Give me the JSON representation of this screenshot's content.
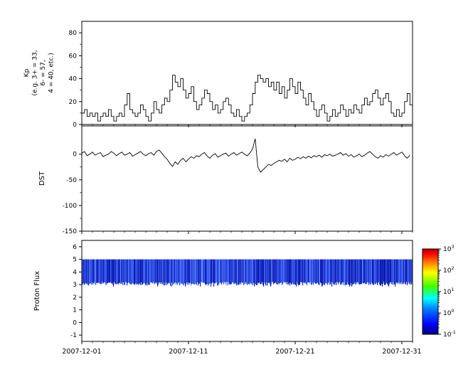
{
  "figure": {
    "background_color": "#ffffff",
    "line_color": "#000000",
    "x_axis": {
      "type": "time",
      "range_days": [
        0,
        31
      ],
      "major_tick_days": [
        0,
        10,
        20,
        30
      ],
      "major_tick_labels": [
        "2007-12-01",
        "2007-12-11",
        "2007-12-21",
        "2007-12-31"
      ],
      "minor_tick_interval_days": 1
    }
  },
  "chart_data": [
    {
      "type": "line",
      "subtype": "step",
      "series_name": "Kp",
      "ylabel_lines": [
        "Kp",
        "(e.g. 3+ = 33,",
        "6- = 57,",
        "4 = 40, etc.)"
      ],
      "ylim": [
        0,
        90
      ],
      "yticks": [
        0,
        20,
        40,
        60,
        80
      ],
      "yticks_minor": [
        10,
        30,
        50,
        70
      ],
      "dt_days": 0.25,
      "values": [
        10,
        13,
        7,
        10,
        7,
        10,
        3,
        7,
        10,
        7,
        13,
        7,
        3,
        7,
        10,
        7,
        17,
        27,
        13,
        10,
        7,
        10,
        17,
        13,
        7,
        3,
        10,
        20,
        13,
        10,
        17,
        23,
        20,
        30,
        43,
        37,
        33,
        40,
        30,
        23,
        27,
        33,
        20,
        13,
        17,
        23,
        30,
        27,
        20,
        13,
        17,
        10,
        13,
        20,
        23,
        17,
        10,
        7,
        13,
        7,
        3,
        7,
        10,
        17,
        27,
        37,
        43,
        40,
        37,
        40,
        33,
        37,
        30,
        37,
        27,
        33,
        23,
        30,
        40,
        33,
        27,
        37,
        30,
        23,
        17,
        27,
        20,
        13,
        7,
        13,
        17,
        10,
        3,
        7,
        13,
        7,
        10,
        17,
        13,
        7,
        13,
        10,
        17,
        13,
        10,
        17,
        23,
        17,
        20,
        27,
        30,
        23,
        17,
        23,
        27,
        20,
        10,
        7,
        13,
        7,
        10,
        20,
        27,
        17
      ]
    },
    {
      "type": "line",
      "series_name": "DST",
      "ylabel": "DST",
      "ylim": [
        -150,
        55
      ],
      "yticks": [
        0,
        -50,
        -100,
        -150
      ],
      "yticks_minor": [
        -25,
        -75,
        -125
      ],
      "dt_days": 0.25,
      "values": [
        2,
        5,
        -3,
        0,
        4,
        -2,
        1,
        3,
        -5,
        -2,
        0,
        5,
        2,
        -3,
        1,
        4,
        -2,
        0,
        3,
        -4,
        -1,
        2,
        5,
        0,
        -3,
        1,
        3,
        -2,
        5,
        8,
        2,
        -5,
        -10,
        -18,
        -24,
        -15,
        -20,
        -12,
        -8,
        -15,
        -10,
        -5,
        -8,
        -3,
        -5,
        0,
        3,
        -4,
        -8,
        -2,
        1,
        -6,
        -3,
        0,
        2,
        -4,
        0,
        3,
        -2,
        1,
        4,
        0,
        -3,
        2,
        10,
        30,
        -25,
        -35,
        -30,
        -25,
        -20,
        -22,
        -18,
        -15,
        -12,
        -14,
        -10,
        -15,
        -8,
        -12,
        -10,
        -6,
        -9,
        -5,
        -8,
        -4,
        -7,
        -3,
        -5,
        -2,
        -6,
        -1,
        -3,
        0,
        -4,
        -2,
        0,
        3,
        -2,
        1,
        -4,
        -1,
        -6,
        -3,
        0,
        -5,
        -2,
        2,
        5,
        0,
        -5,
        -8,
        -3,
        -6,
        -1,
        -4,
        0,
        3,
        -2,
        1,
        4,
        -3,
        -8,
        -2
      ]
    },
    {
      "type": "heatmap",
      "series_name": "Proton Flux",
      "ylabel": "Proton Flux",
      "ylim": [
        -1.5,
        6.5
      ],
      "yticks": [
        -1,
        0,
        1,
        2,
        3,
        4,
        5,
        6
      ],
      "band": {
        "y_min": 3,
        "y_max": 5,
        "approx_log10_flux_range": [
          -1.0,
          -0.4
        ],
        "base_color": "#1535e8"
      },
      "colorbar": {
        "scale": "log10",
        "tick_exponents": [
          3,
          2,
          1,
          0,
          -1
        ],
        "tick_label_base": "10",
        "colormap": "jet",
        "gradient_stops": [
          {
            "offset": 0.0,
            "color": "#000080"
          },
          {
            "offset": 0.12,
            "color": "#0000ff"
          },
          {
            "offset": 0.3,
            "color": "#0080ff"
          },
          {
            "offset": 0.42,
            "color": "#00ffff"
          },
          {
            "offset": 0.56,
            "color": "#40ff00"
          },
          {
            "offset": 0.72,
            "color": "#ffff00"
          },
          {
            "offset": 0.84,
            "color": "#ff8000"
          },
          {
            "offset": 0.94,
            "color": "#ff0000"
          },
          {
            "offset": 1.0,
            "color": "#b00000"
          }
        ]
      }
    }
  ]
}
